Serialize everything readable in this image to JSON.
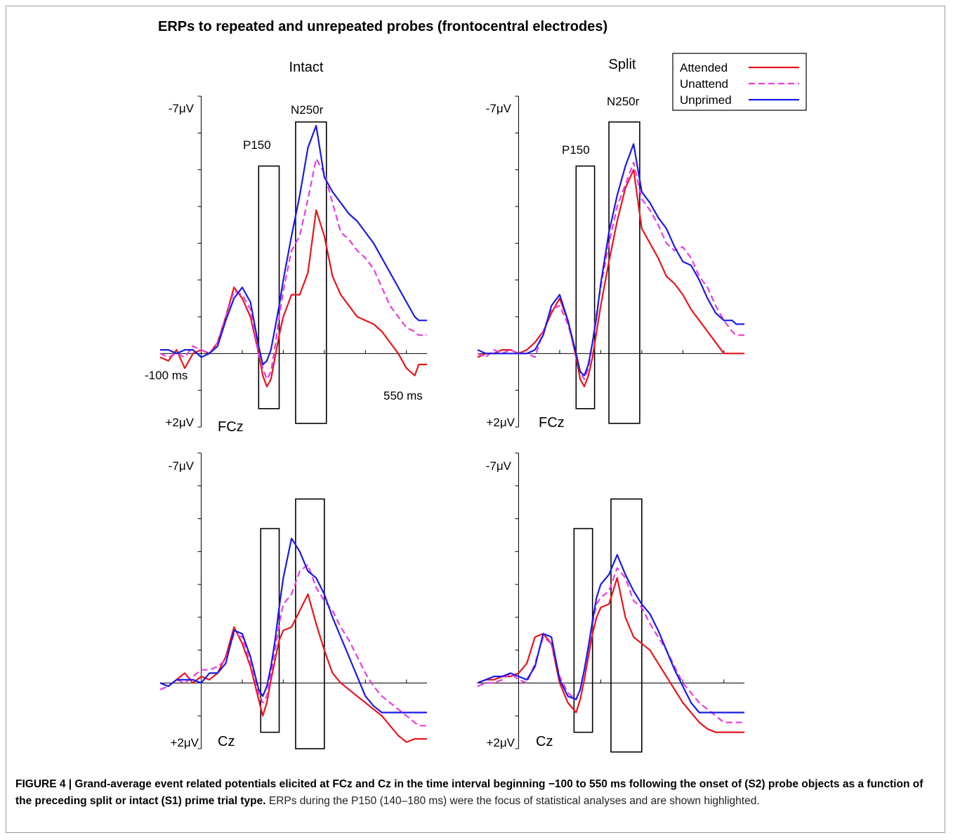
{
  "figure_title": "ERPs to repeated and unrepeated probes (frontocentral electrodes)",
  "caption": {
    "bold": "FIGURE 4 | Grand-average event related potentials elicited at FCz and Cz in the time interval beginning −100 to 550 ms following the onset of (S2) probe objects as a function of the preceding split or intact (S1) prime trial type.",
    "normal": " ERPs during the P150 (140–180 ms) were the focus of statistical analyses and are shown highlighted."
  },
  "legend": {
    "placement": "top-right",
    "entries": [
      {
        "label": "Attended",
        "color": "#e8141c",
        "dash": "solid"
      },
      {
        "label": "Unattend",
        "color": "#e83ce0",
        "dash": "dashed"
      },
      {
        "label": "Unprimed",
        "color": "#1a1ae6",
        "dash": "solid"
      }
    ]
  },
  "chart_data": [
    {
      "type": "line",
      "column_title": "Intact",
      "electrode": "FCz",
      "ytop_label": "-7μV",
      "ybottom_label": "+2μV",
      "xstart_label": "-100 ms",
      "xend_label": "550 ms",
      "window_labels": [
        "P150",
        "N250r"
      ],
      "xlim": [
        -100,
        550
      ],
      "ylim": [
        2,
        -7
      ],
      "windows": [
        {
          "t0": 140,
          "t1": 190,
          "v0": -5.1,
          "v1": 1.5
        },
        {
          "t0": 230,
          "t1": 305,
          "v0": -6.3,
          "v1": 1.9
        }
      ],
      "series": [
        {
          "name": "Attended",
          "x": [
            -100,
            -80,
            -60,
            -40,
            -20,
            0,
            20,
            40,
            60,
            80,
            100,
            120,
            140,
            150,
            160,
            170,
            180,
            190,
            200,
            220,
            240,
            260,
            280,
            300,
            320,
            340,
            360,
            380,
            400,
            420,
            440,
            460,
            480,
            500,
            520,
            530,
            550
          ],
          "values": [
            0.1,
            0.2,
            -0.1,
            0.4,
            0.0,
            -0.1,
            0.0,
            -0.3,
            -1.0,
            -1.8,
            -1.5,
            -1.0,
            0.0,
            0.6,
            0.9,
            0.7,
            0.1,
            -0.5,
            -1.0,
            -1.6,
            -1.6,
            -2.2,
            -3.9,
            -3.2,
            -2.1,
            -1.6,
            -1.3,
            -1.0,
            -0.9,
            -0.8,
            -0.6,
            -0.3,
            0.0,
            0.4,
            0.6,
            0.3,
            0.3
          ]
        },
        {
          "name": "Unattend",
          "x": [
            -100,
            -80,
            -60,
            -40,
            -20,
            0,
            20,
            40,
            60,
            80,
            100,
            120,
            140,
            150,
            160,
            170,
            180,
            190,
            200,
            220,
            240,
            260,
            280,
            300,
            320,
            340,
            360,
            380,
            400,
            420,
            440,
            460,
            480,
            500,
            520,
            530,
            550
          ],
          "values": [
            0.0,
            0.1,
            0.0,
            0.1,
            -0.2,
            -0.1,
            0.0,
            -0.3,
            -1.0,
            -1.7,
            -1.6,
            -1.2,
            0.0,
            0.4,
            0.7,
            0.5,
            -0.2,
            -1.0,
            -1.7,
            -2.8,
            -3.2,
            -4.2,
            -5.3,
            -4.9,
            -4.1,
            -3.3,
            -3.1,
            -2.8,
            -2.6,
            -2.3,
            -1.8,
            -1.3,
            -1.0,
            -0.7,
            -0.6,
            -0.5,
            -0.5
          ]
        },
        {
          "name": "Unprimed",
          "x": [
            -100,
            -80,
            -60,
            -40,
            -20,
            0,
            20,
            40,
            60,
            80,
            100,
            120,
            140,
            150,
            160,
            170,
            180,
            190,
            200,
            220,
            240,
            260,
            280,
            300,
            320,
            340,
            360,
            380,
            400,
            420,
            440,
            460,
            480,
            500,
            520,
            530,
            550
          ],
          "values": [
            -0.1,
            -0.1,
            0.0,
            -0.1,
            -0.1,
            0.1,
            0.0,
            -0.2,
            -0.9,
            -1.5,
            -1.8,
            -1.4,
            -0.2,
            0.3,
            0.2,
            -0.1,
            -0.7,
            -1.3,
            -2.0,
            -3.2,
            -4.3,
            -5.6,
            -6.2,
            -4.8,
            -4.4,
            -4.1,
            -3.8,
            -3.6,
            -3.3,
            -3.0,
            -2.6,
            -2.2,
            -1.8,
            -1.4,
            -1.0,
            -0.9,
            -0.9
          ]
        }
      ]
    },
    {
      "type": "line",
      "column_title": "Split",
      "electrode": "FCz",
      "ytop_label": "-7μV",
      "ybottom_label": "+2μV",
      "window_labels": [
        "P150",
        "N250r"
      ],
      "xlim": [
        -100,
        550
      ],
      "ylim": [
        2,
        -7
      ],
      "windows": [
        {
          "t0": 140,
          "t1": 185,
          "v0": -5.1,
          "v1": 1.5
        },
        {
          "t0": 220,
          "t1": 295,
          "v0": -6.3,
          "v1": 1.9
        }
      ],
      "series": [
        {
          "name": "Attended",
          "x": [
            -100,
            -80,
            -60,
            -40,
            -20,
            0,
            20,
            40,
            60,
            80,
            100,
            120,
            140,
            150,
            160,
            170,
            180,
            190,
            200,
            220,
            240,
            260,
            280,
            300,
            320,
            340,
            360,
            380,
            400,
            420,
            440,
            460,
            480,
            500,
            520,
            530,
            550
          ],
          "values": [
            0.1,
            0.0,
            0.0,
            -0.1,
            -0.1,
            0.0,
            -0.1,
            -0.3,
            -0.6,
            -1.1,
            -1.5,
            -0.9,
            0.1,
            0.7,
            0.9,
            0.6,
            0.1,
            -0.6,
            -1.3,
            -2.5,
            -3.6,
            -4.5,
            -5.0,
            -3.4,
            -3.0,
            -2.6,
            -2.1,
            -1.9,
            -1.6,
            -1.2,
            -0.9,
            -0.6,
            -0.3,
            0.0,
            0.0,
            0.0,
            0.0
          ]
        },
        {
          "name": "Unattend",
          "x": [
            -100,
            -80,
            -60,
            -40,
            -20,
            0,
            20,
            40,
            60,
            80,
            100,
            120,
            140,
            150,
            160,
            170,
            180,
            190,
            200,
            220,
            240,
            260,
            280,
            300,
            320,
            340,
            360,
            380,
            400,
            420,
            440,
            460,
            480,
            500,
            520,
            530,
            550
          ],
          "values": [
            0.0,
            0.1,
            -0.1,
            0.0,
            -0.1,
            0.0,
            0.0,
            0.1,
            -0.6,
            -1.2,
            -1.3,
            -0.8,
            0.0,
            0.5,
            0.7,
            0.4,
            -0.3,
            -1.1,
            -1.8,
            -3.0,
            -4.0,
            -4.6,
            -5.2,
            -4.2,
            -3.9,
            -3.5,
            -3.0,
            -2.8,
            -2.9,
            -2.6,
            -2.1,
            -1.8,
            -1.3,
            -0.9,
            -0.6,
            -0.5,
            -0.5
          ]
        },
        {
          "name": "Unprimed",
          "x": [
            -100,
            -80,
            -60,
            -40,
            -20,
            0,
            20,
            40,
            60,
            80,
            100,
            120,
            140,
            150,
            160,
            170,
            180,
            190,
            200,
            220,
            240,
            260,
            280,
            300,
            320,
            340,
            360,
            380,
            400,
            420,
            440,
            460,
            480,
            500,
            520,
            530,
            550
          ],
          "values": [
            -0.1,
            0.0,
            0.0,
            0.0,
            0.0,
            0.0,
            0.0,
            -0.1,
            -0.5,
            -1.3,
            -1.6,
            -0.9,
            0.0,
            0.5,
            0.6,
            0.3,
            -0.3,
            -1.0,
            -1.9,
            -3.3,
            -4.3,
            -5.1,
            -5.7,
            -4.4,
            -4.1,
            -3.7,
            -3.4,
            -2.9,
            -2.5,
            -2.4,
            -2.0,
            -1.5,
            -1.1,
            -0.9,
            -0.9,
            -0.8,
            -0.8
          ]
        }
      ]
    },
    {
      "type": "line",
      "column_title": "Intact",
      "electrode": "Cz",
      "ytop_label": "-7μV",
      "ybottom_label": "+2μV",
      "xlim": [
        -100,
        550
      ],
      "ylim": [
        2,
        -7
      ],
      "windows": [
        {
          "t0": 145,
          "t1": 190,
          "v0": -4.7,
          "v1": 1.5
        },
        {
          "t0": 230,
          "t1": 300,
          "v0": -5.6,
          "v1": 2.0
        }
      ],
      "series": [
        {
          "name": "Attended",
          "x": [
            -100,
            -80,
            -60,
            -40,
            -20,
            0,
            20,
            40,
            60,
            80,
            100,
            120,
            140,
            150,
            160,
            170,
            180,
            190,
            200,
            220,
            240,
            260,
            280,
            300,
            320,
            340,
            360,
            380,
            400,
            420,
            440,
            460,
            480,
            500,
            520,
            530,
            550
          ],
          "values": [
            0.0,
            0.1,
            -0.1,
            -0.3,
            0.0,
            -0.2,
            -0.1,
            -0.3,
            -0.8,
            -1.7,
            -1.2,
            -0.5,
            0.5,
            1.0,
            0.6,
            -0.1,
            -0.7,
            -1.3,
            -1.6,
            -1.7,
            -2.2,
            -2.7,
            -1.8,
            -1.0,
            -0.3,
            0.0,
            0.2,
            0.4,
            0.6,
            0.8,
            1.0,
            1.3,
            1.6,
            1.8,
            1.7,
            1.7,
            1.7
          ]
        },
        {
          "name": "Unattend",
          "x": [
            -100,
            -80,
            -60,
            -40,
            -20,
            0,
            20,
            40,
            60,
            80,
            100,
            120,
            140,
            150,
            160,
            170,
            180,
            190,
            200,
            220,
            240,
            260,
            280,
            300,
            320,
            340,
            360,
            380,
            400,
            420,
            440,
            460,
            480,
            500,
            520,
            530,
            550
          ],
          "values": [
            0.2,
            0.1,
            -0.1,
            0.0,
            -0.2,
            -0.4,
            -0.4,
            -0.5,
            -0.7,
            -1.5,
            -1.4,
            -0.6,
            0.3,
            0.6,
            0.4,
            -0.3,
            -1.0,
            -1.8,
            -2.4,
            -2.7,
            -3.4,
            -3.6,
            -2.9,
            -2.5,
            -2.2,
            -1.7,
            -1.3,
            -0.8,
            -0.3,
            0.1,
            0.4,
            0.6,
            0.8,
            1.0,
            1.2,
            1.3,
            1.3
          ]
        },
        {
          "name": "Unprimed",
          "x": [
            -100,
            -80,
            -60,
            -40,
            -20,
            0,
            20,
            40,
            60,
            80,
            100,
            120,
            140,
            150,
            160,
            170,
            180,
            190,
            200,
            220,
            240,
            260,
            280,
            300,
            320,
            340,
            360,
            380,
            400,
            420,
            440,
            460,
            480,
            500,
            520,
            530,
            550
          ],
          "values": [
            0.0,
            0.1,
            -0.1,
            -0.1,
            -0.1,
            0.0,
            -0.3,
            -0.3,
            -0.6,
            -1.6,
            -1.5,
            -0.8,
            0.2,
            0.4,
            0.1,
            -0.5,
            -1.3,
            -2.3,
            -3.2,
            -4.4,
            -4.0,
            -3.4,
            -3.2,
            -2.7,
            -2.0,
            -1.4,
            -0.8,
            -0.2,
            0.4,
            0.7,
            0.9,
            0.9,
            0.9,
            0.9,
            0.9,
            0.9,
            0.9
          ]
        }
      ]
    },
    {
      "type": "line",
      "column_title": "Split",
      "electrode": "Cz",
      "ytop_label": "-7μV",
      "ybottom_label": "+2μV",
      "xlim": [
        -100,
        550
      ],
      "ylim": [
        2,
        -7
      ],
      "windows": [
        {
          "t0": 135,
          "t1": 180,
          "v0": -4.7,
          "v1": 1.5
        },
        {
          "t0": 225,
          "t1": 300,
          "v0": -5.6,
          "v1": 2.1
        }
      ],
      "series": [
        {
          "name": "Attended",
          "x": [
            -100,
            -80,
            -60,
            -40,
            -20,
            0,
            20,
            40,
            60,
            80,
            100,
            120,
            140,
            150,
            160,
            170,
            180,
            190,
            200,
            220,
            240,
            260,
            280,
            300,
            320,
            340,
            360,
            380,
            400,
            420,
            440,
            460,
            480,
            500,
            520,
            530,
            550
          ],
          "values": [
            0.0,
            -0.1,
            -0.1,
            -0.2,
            -0.2,
            -0.3,
            -0.6,
            -1.4,
            -1.5,
            -1.2,
            0.0,
            0.6,
            0.9,
            0.5,
            -0.1,
            -0.8,
            -1.5,
            -2.0,
            -2.3,
            -2.4,
            -3.2,
            -2.0,
            -1.4,
            -1.2,
            -1.0,
            -0.6,
            -0.2,
            0.2,
            0.6,
            0.9,
            1.2,
            1.4,
            1.5,
            1.5,
            1.5,
            1.5,
            1.5
          ]
        },
        {
          "name": "Unattend",
          "x": [
            -100,
            -80,
            -60,
            -40,
            -20,
            0,
            20,
            40,
            60,
            80,
            100,
            120,
            140,
            150,
            160,
            170,
            180,
            190,
            200,
            220,
            240,
            260,
            280,
            300,
            320,
            340,
            360,
            380,
            400,
            420,
            440,
            460,
            480,
            500,
            520,
            530,
            550
          ],
          "values": [
            0.1,
            0.0,
            0.0,
            -0.1,
            -0.3,
            -0.1,
            0.0,
            -0.6,
            -1.4,
            -1.2,
            -0.2,
            0.3,
            0.5,
            0.2,
            -0.4,
            -1.0,
            -1.8,
            -2.4,
            -2.6,
            -2.8,
            -3.5,
            -3.2,
            -2.5,
            -2.3,
            -1.8,
            -1.4,
            -1.0,
            -0.5,
            0.0,
            0.3,
            0.6,
            0.8,
            1.0,
            1.2,
            1.2,
            1.2,
            1.2
          ]
        },
        {
          "name": "Unprimed",
          "x": [
            -100,
            -80,
            -60,
            -40,
            -20,
            0,
            20,
            40,
            60,
            80,
            100,
            120,
            140,
            150,
            160,
            170,
            180,
            190,
            200,
            220,
            240,
            260,
            280,
            300,
            320,
            340,
            360,
            380,
            400,
            420,
            440,
            460,
            480,
            500,
            520,
            530,
            550
          ],
          "values": [
            0.0,
            -0.1,
            -0.2,
            -0.2,
            -0.3,
            -0.2,
            -0.1,
            -0.5,
            -1.5,
            -1.4,
            -0.1,
            0.4,
            0.5,
            0.2,
            -0.4,
            -1.1,
            -1.9,
            -2.6,
            -3.0,
            -3.3,
            -3.9,
            -3.3,
            -2.8,
            -2.4,
            -2.1,
            -1.6,
            -1.0,
            -0.4,
            0.1,
            0.6,
            0.9,
            0.9,
            0.9,
            0.9,
            0.9,
            0.9,
            0.9
          ]
        }
      ]
    }
  ]
}
